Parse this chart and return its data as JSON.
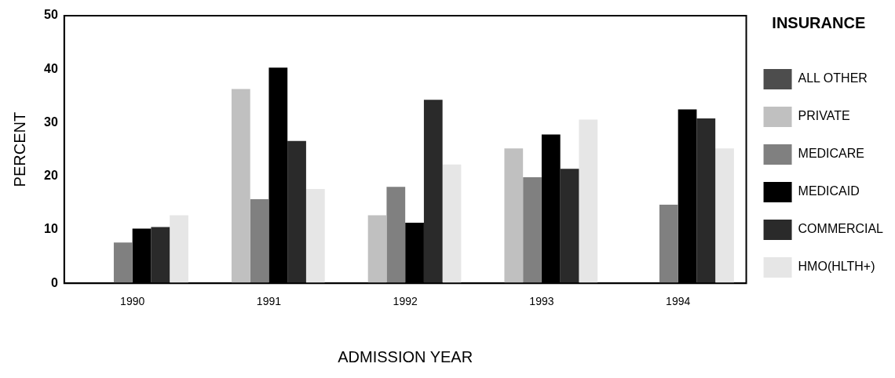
{
  "chart_data": {
    "type": "bar",
    "xlabel": "ADMISSION YEAR",
    "ylabel": "PERCENT",
    "legend_title": "INSURANCE",
    "legend": "right",
    "categories": [
      "1990",
      "1991",
      "1992",
      "1993",
      "1994"
    ],
    "ylim": [
      0,
      50
    ],
    "yticks": [
      0,
      10,
      20,
      30,
      40,
      50
    ],
    "grid": false,
    "series": [
      {
        "name": "ALL OTHER",
        "color": "#4d4d4d",
        "values": [
          0,
          0,
          0,
          0,
          0
        ]
      },
      {
        "name": "PRIVATE",
        "color": "#c0c0c0",
        "values": [
          0,
          36.3,
          12.7,
          25.2,
          0
        ]
      },
      {
        "name": "MEDICARE",
        "color": "#808080",
        "values": [
          7.6,
          15.7,
          18.0,
          19.8,
          14.7
        ]
      },
      {
        "name": "MEDICAID",
        "color": "#000000",
        "values": [
          10.2,
          40.3,
          11.3,
          27.8,
          32.5
        ]
      },
      {
        "name": "COMMERCIAL",
        "color": "#2a2a2a",
        "values": [
          10.5,
          26.6,
          34.3,
          21.4,
          30.8
        ]
      },
      {
        "name": "HMO(HLTH+)",
        "color": "#e6e6e6",
        "values": [
          12.7,
          17.6,
          22.2,
          30.6,
          25.2
        ]
      }
    ]
  }
}
